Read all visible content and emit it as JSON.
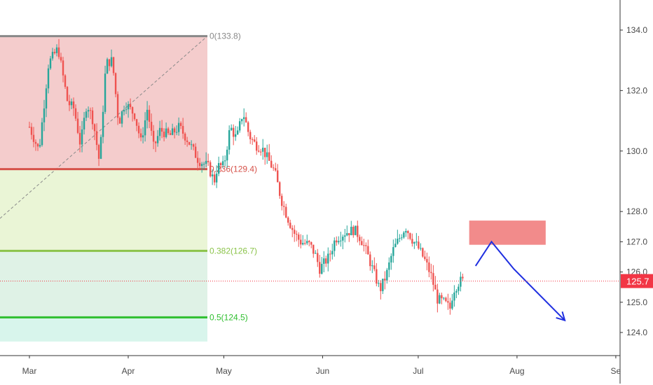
{
  "chart_data": {
    "type": "candlestick",
    "title": "",
    "xlabel": "",
    "ylabel": "",
    "ylim": [
      123.3,
      134.6
    ],
    "y_ticks": [
      "124.0",
      "125.0",
      "126.0",
      "127.0",
      "128.0",
      "130.0",
      "132.0",
      "134.0"
    ],
    "x_ticks": [
      {
        "label": "Mar",
        "day": 0
      },
      {
        "label": "Apr",
        "day": 31
      },
      {
        "label": "May",
        "day": 61
      },
      {
        "label": "Jun",
        "day": 92
      },
      {
        "label": "Jul",
        "day": 122
      },
      {
        "label": "Aug",
        "day": 153
      },
      {
        "label": "Se",
        "day": 184
      }
    ],
    "current_price": {
      "value": 125.7,
      "label": "125.7",
      "color": "#f23645"
    },
    "fibonacci": {
      "levels": [
        {
          "label": "0(133.8)",
          "value": 133.8,
          "color": "#888888"
        },
        {
          "label": "0.236(129.4)",
          "value": 129.4,
          "color": "#d6524a"
        },
        {
          "label": "0.382(126.7)",
          "value": 126.7,
          "color": "#8bc34a"
        },
        {
          "label": "0.5(124.5)",
          "value": 124.5,
          "color": "#2fbf2f"
        }
      ],
      "zone_colors": [
        "#f4cccc",
        "#eaf5d6",
        "#dff2e6",
        "#d8f5ec"
      ],
      "bottom": 123.7
    },
    "price_path": [
      [
        0,
        130.8
      ],
      [
        3,
        130.0
      ],
      [
        6,
        132.9
      ],
      [
        9,
        133.4
      ],
      [
        12,
        131.6
      ],
      [
        14,
        131.4
      ],
      [
        16,
        130.2
      ],
      [
        18,
        131.6
      ],
      [
        20,
        131.0
      ],
      [
        22,
        129.6
      ],
      [
        24,
        132.9
      ],
      [
        26,
        133.0
      ],
      [
        28,
        130.9
      ],
      [
        30,
        131.6
      ],
      [
        33,
        131.2
      ],
      [
        35,
        130.3
      ],
      [
        37,
        131.4
      ],
      [
        39,
        130.1
      ],
      [
        41,
        130.7
      ],
      [
        44,
        130.5
      ],
      [
        47,
        130.8
      ],
      [
        50,
        130.3
      ],
      [
        53,
        129.7
      ],
      [
        56,
        129.5
      ],
      [
        58,
        129.0
      ],
      [
        59,
        129.5
      ],
      [
        61,
        129.5
      ],
      [
        63,
        130.8
      ],
      [
        65,
        130.4
      ],
      [
        67,
        131.3
      ],
      [
        69,
        130.5
      ],
      [
        71,
        130.2
      ],
      [
        73,
        130.1
      ],
      [
        75,
        129.7
      ],
      [
        77,
        129.3
      ],
      [
        79,
        128.4
      ],
      [
        81,
        127.8
      ],
      [
        83,
        127.3
      ],
      [
        85,
        127.0
      ],
      [
        88,
        126.9
      ],
      [
        90,
        126.5
      ],
      [
        91,
        126.1
      ],
      [
        94,
        126.5
      ],
      [
        96,
        127.1
      ],
      [
        99,
        127.3
      ],
      [
        102,
        127.4
      ],
      [
        104,
        127.1
      ],
      [
        106,
        126.6
      ],
      [
        108,
        126.0
      ],
      [
        110,
        125.4
      ],
      [
        112,
        125.9
      ],
      [
        114,
        126.7
      ],
      [
        116,
        127.1
      ],
      [
        118,
        127.5
      ],
      [
        120,
        127.1
      ],
      [
        122,
        126.8
      ],
      [
        124,
        126.4
      ],
      [
        126,
        125.9
      ],
      [
        128,
        125.1
      ],
      [
        130,
        125.0
      ],
      [
        132,
        124.8
      ],
      [
        133,
        125.4
      ],
      [
        135,
        125.7
      ],
      [
        136,
        125.7
      ]
    ],
    "drawings": {
      "resistance_box": {
        "day_start": 138,
        "day_end": 162,
        "price_low": 126.9,
        "price_high": 127.7,
        "color": "#f28b8b"
      },
      "projection": {
        "points": [
          [
            140,
            126.2
          ],
          [
            145,
            127.0
          ],
          [
            152,
            126.1
          ],
          [
            168,
            124.4
          ]
        ],
        "color": "#1f2fe0"
      }
    }
  }
}
